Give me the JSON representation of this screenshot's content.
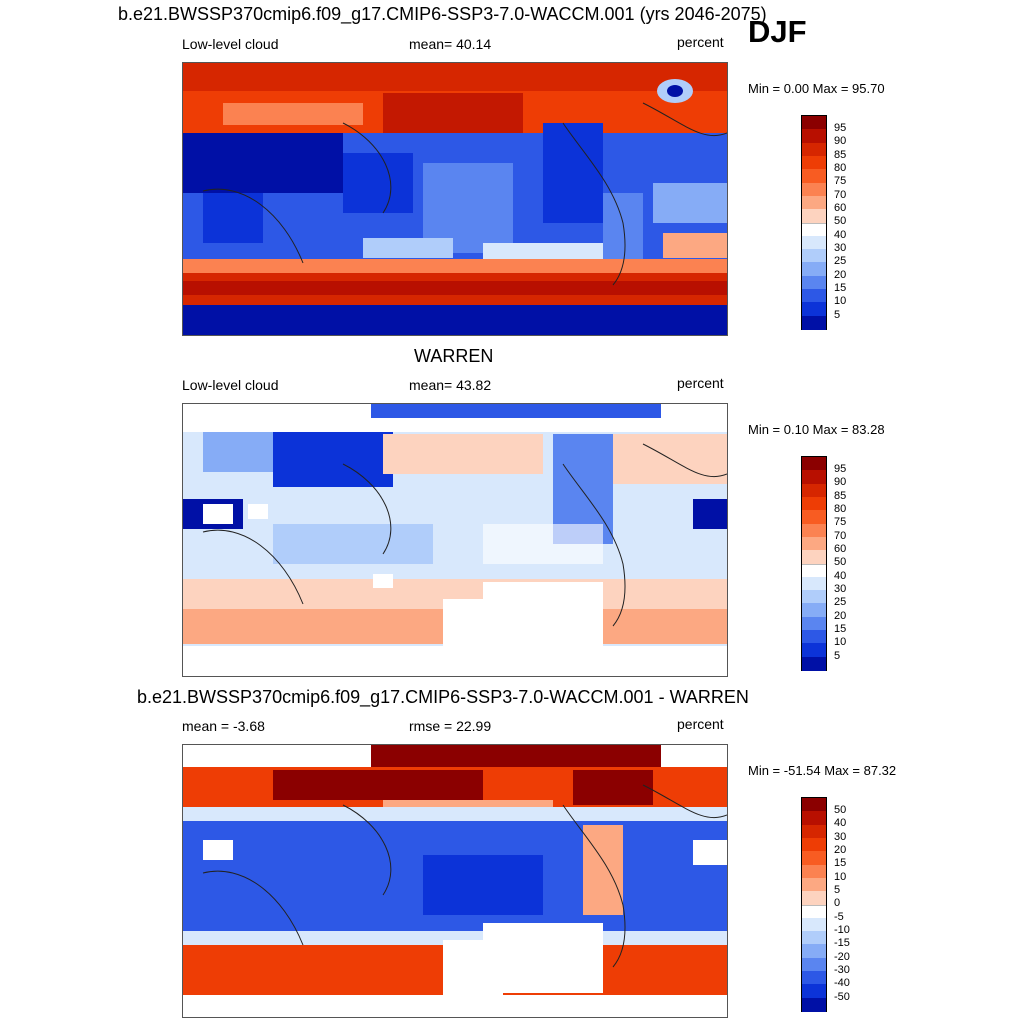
{
  "season": "DJF",
  "panels": [
    {
      "title": "b.e21.BWSSP370cmip6.f09_g17.CMIP6-SSP3-7.0-WACCM.001 (yrs 2046-2075)",
      "left_label": "Low-level cloud",
      "center_label": "mean=  40.14",
      "right_label": "percent",
      "minmax": "Min =   0.00 Max =  95.70",
      "colorbar": {
        "labels": [
          "95",
          "90",
          "85",
          "80",
          "75",
          "70",
          "60",
          "50",
          "40",
          "30",
          "25",
          "20",
          "15",
          "10",
          "5"
        ],
        "colors": [
          "#8b0000",
          "#b80f00",
          "#d62600",
          "#ee3d05",
          "#f85c22",
          "#fb8251",
          "#fca882",
          "#fdd3bf",
          "#ffffff",
          "#d8e8fc",
          "#b0cdfa",
          "#86acf6",
          "#5a85f0",
          "#2d58e6",
          "#0c33d8",
          "#0010a6"
        ]
      }
    },
    {
      "title": "WARREN",
      "left_label": "Low-level cloud",
      "center_label": "mean=  43.82",
      "right_label": "percent",
      "minmax": "Min =   0.10 Max =  83.28",
      "colorbar": {
        "labels": [
          "95",
          "90",
          "85",
          "80",
          "75",
          "70",
          "60",
          "50",
          "40",
          "30",
          "25",
          "20",
          "15",
          "10",
          "5"
        ],
        "colors": [
          "#8b0000",
          "#b80f00",
          "#d62600",
          "#ee3d05",
          "#f85c22",
          "#fb8251",
          "#fca882",
          "#fdd3bf",
          "#ffffff",
          "#d8e8fc",
          "#b0cdfa",
          "#86acf6",
          "#5a85f0",
          "#2d58e6",
          "#0c33d8",
          "#0010a6"
        ]
      }
    },
    {
      "title": "b.e21.BWSSP370cmip6.f09_g17.CMIP6-SSP3-7.0-WACCM.001 - WARREN",
      "left_label": "mean =  -3.68",
      "center_label": "rmse =  22.99",
      "right_label": "percent",
      "minmax": "Min = -51.54 Max =  87.32",
      "colorbar": {
        "labels": [
          "50",
          "40",
          "30",
          "20",
          "15",
          "10",
          "5",
          "0",
          "-5",
          "-10",
          "-15",
          "-20",
          "-30",
          "-40",
          "-50"
        ],
        "colors": [
          "#8b0000",
          "#b80f00",
          "#d62600",
          "#ee3d05",
          "#f85c22",
          "#fb8251",
          "#fca882",
          "#fdd3bf",
          "#ffffff",
          "#d8e8fc",
          "#b0cdfa",
          "#86acf6",
          "#5a85f0",
          "#2d58e6",
          "#0c33d8",
          "#0010a6"
        ]
      }
    }
  ]
}
